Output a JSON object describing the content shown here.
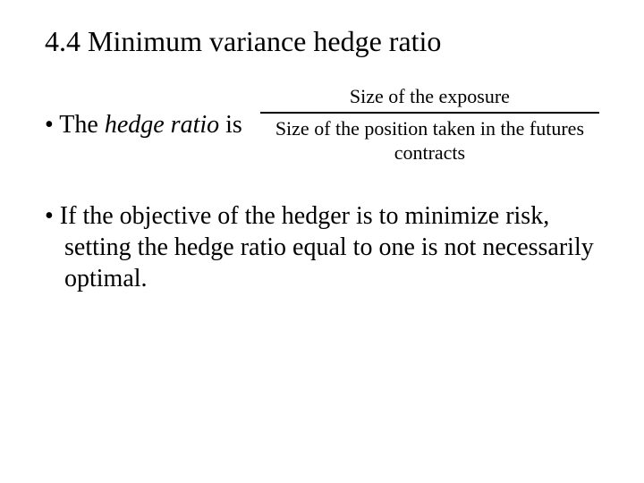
{
  "title": "4.4 Minimum variance hedge ratio",
  "bullet1_prefix": "• The ",
  "bullet1_italic": "hedge ratio",
  "bullet1_suffix": " is",
  "fraction": {
    "numerator": "Size of the exposure",
    "denominator": "Size of the position taken in the futures contracts"
  },
  "bullet2": "• If the objective of the hedger is to minimize risk, setting the hedge ratio equal to one is not necessarily optimal.",
  "colors": {
    "text": "#000000",
    "background": "#ffffff"
  },
  "fonts": {
    "family": "Times New Roman",
    "title_size_pt": 32,
    "body_size_pt": 28,
    "fraction_size_pt": 22
  }
}
